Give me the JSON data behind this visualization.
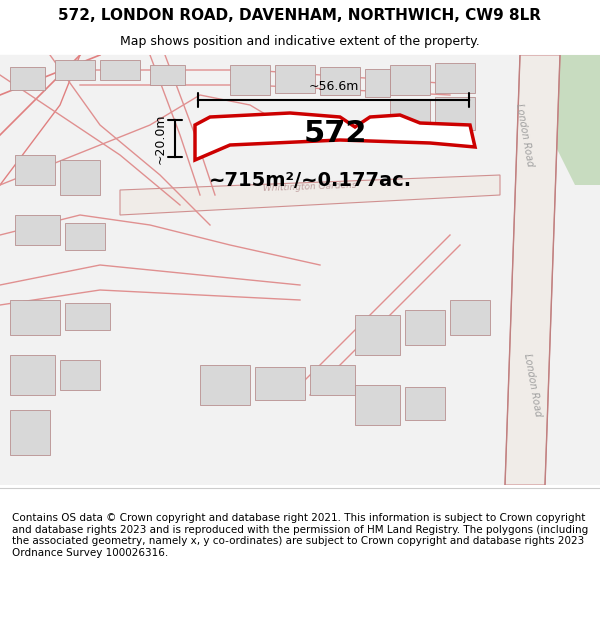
{
  "title": "572, LONDON ROAD, DAVENHAM, NORTHWICH, CW9 8LR",
  "subtitle": "Map shows position and indicative extent of the property.",
  "footer": "Contains OS data © Crown copyright and database right 2021. This information is subject to Crown copyright and database rights 2023 and is reproduced with the permission of HM Land Registry. The polygons (including the associated geometry, namely x, y co-ordinates) are subject to Crown copyright and database rights 2023 Ordnance Survey 100026316.",
  "property_label": "572",
  "area_label": "~715m²/~0.177ac.",
  "width_label": "~56.6m",
  "height_label": "~20.0m",
  "map_bg": "#f5f5f5",
  "road_color": "#f0a0a0",
  "road_fill": "#ffffff",
  "building_color": "#d8d8d8",
  "highlight_color": "#cc0000",
  "highlight_fill": "#ffffff",
  "green_area": "#c8dcc8",
  "figsize": [
    6.0,
    6.25
  ],
  "dpi": 100,
  "map_extent": [
    0,
    1,
    0,
    1
  ],
  "title_fontsize": 11,
  "subtitle_fontsize": 9,
  "footer_fontsize": 7.5
}
